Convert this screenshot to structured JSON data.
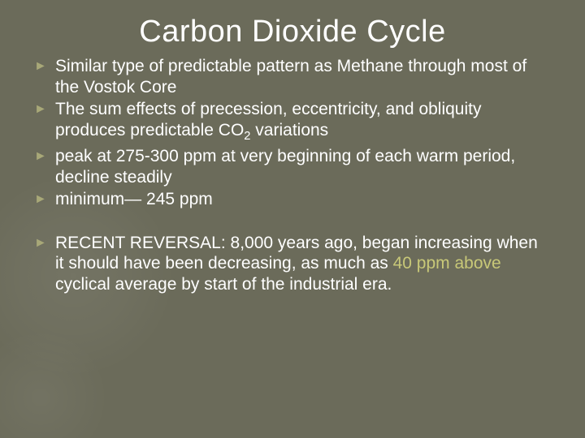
{
  "title": "Carbon Dioxide Cycle",
  "bullet_marker": "►",
  "colors": {
    "background": "#6b6b5a",
    "text": "#ffffff",
    "bullet": "#a8a878",
    "accent": "#c8c878"
  },
  "bullets_group1": [
    {
      "pre": "Similar ",
      "rest": "type of predictable pattern as Methane through most of the Vostok Core"
    },
    {
      "pre": "The ",
      "rest_html": "sum effects of precession, eccentricity, and obliquity produces predictable CO<sub>2</sub> variations"
    },
    {
      "pre": "peak ",
      "rest": "at 275-300 ppm at very beginning of each warm period, decline steadily"
    },
    {
      "pre": "minimum— ",
      "rest": "245 ppm"
    }
  ],
  "bullets_group2": [
    {
      "pre": "RECENT ",
      "rest_before_accent": "REVERSAL: 8,000 years ago, began increasing when it should have been decreasing, as much as ",
      "accent": "40 ppm above",
      "rest_after_accent": " cyclical average by start of the industrial era."
    }
  ]
}
